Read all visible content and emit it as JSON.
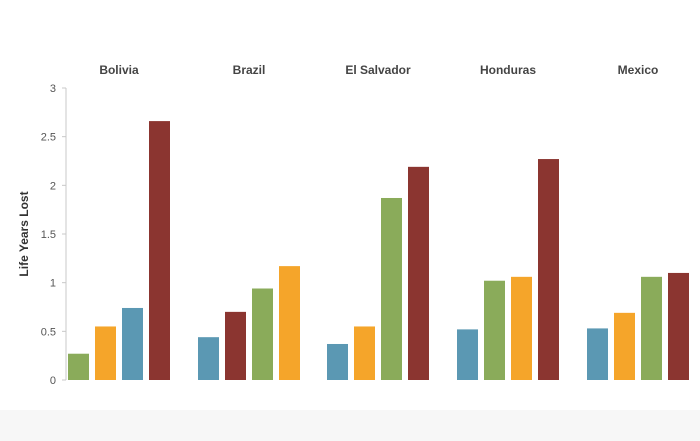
{
  "chart_data": {
    "type": "bar",
    "ylabel": "Life Years Lost",
    "ylim": [
      0,
      3
    ],
    "yticks": [
      "0",
      "0.5",
      "1",
      "1.5",
      "2",
      "2.5",
      "3"
    ],
    "grid": false,
    "legend": "none",
    "facets": [
      {
        "title": "Bolivia",
        "bars": [
          {
            "value": 0.27,
            "color": "#8aab5a"
          },
          {
            "value": 0.55,
            "color": "#f5a52a"
          },
          {
            "value": 0.74,
            "color": "#5b98b3"
          },
          {
            "value": 2.66,
            "color": "#8b3530"
          }
        ]
      },
      {
        "title": "Brazil",
        "bars": [
          {
            "value": 0.44,
            "color": "#5b98b3"
          },
          {
            "value": 0.7,
            "color": "#8b3530"
          },
          {
            "value": 0.94,
            "color": "#8aab5a"
          },
          {
            "value": 1.17,
            "color": "#f5a52a"
          }
        ]
      },
      {
        "title": "El Salvador",
        "bars": [
          {
            "value": 0.37,
            "color": "#5b98b3"
          },
          {
            "value": 0.55,
            "color": "#f5a52a"
          },
          {
            "value": 1.87,
            "color": "#8aab5a"
          },
          {
            "value": 2.19,
            "color": "#8b3530"
          }
        ]
      },
      {
        "title": "Honduras",
        "bars": [
          {
            "value": 0.52,
            "color": "#5b98b3"
          },
          {
            "value": 1.02,
            "color": "#8aab5a"
          },
          {
            "value": 1.06,
            "color": "#f5a52a"
          },
          {
            "value": 2.27,
            "color": "#8b3530"
          }
        ]
      },
      {
        "title": "Mexico",
        "bars": [
          {
            "value": 0.53,
            "color": "#5b98b3"
          },
          {
            "value": 0.69,
            "color": "#f5a52a"
          },
          {
            "value": 1.06,
            "color": "#8aab5a"
          },
          {
            "value": 1.1,
            "color": "#8b3530"
          }
        ]
      }
    ]
  }
}
